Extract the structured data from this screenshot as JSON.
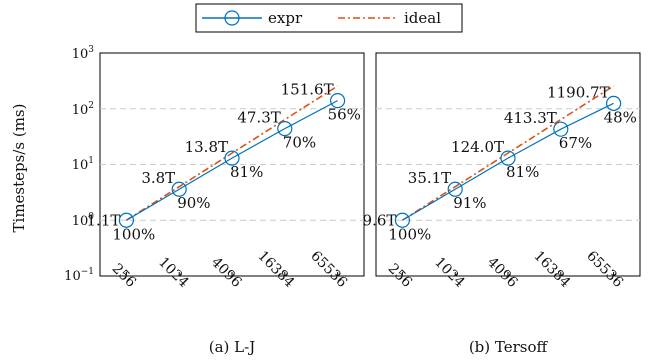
{
  "chart_data": [
    {
      "type": "line",
      "title": "",
      "caption": "(a) L-J",
      "xlabel": "",
      "ylabel": "Timesteps/s (ms)",
      "x": [
        "256",
        "1024",
        "4096",
        "16384",
        "65536"
      ],
      "yscale": "log",
      "ylim": [
        0.1,
        1000
      ],
      "yticks": [
        "10⁻¹",
        "10⁰",
        "10¹",
        "10²",
        "10³"
      ],
      "grid": true,
      "series": [
        {
          "name": "expr",
          "values": [
            1.0,
            3.6,
            13.0,
            44,
            140
          ]
        },
        {
          "name": "ideal",
          "values": [
            1.0,
            4.0,
            16.0,
            64,
            256
          ]
        }
      ],
      "point_labels": [
        "1.1T",
        "3.8T",
        "13.8T",
        "47.3T",
        "151.6T"
      ],
      "efficiency_labels": [
        "100%",
        "90%",
        "81%",
        "70%",
        "56%"
      ]
    },
    {
      "type": "line",
      "title": "",
      "caption": "(b) Tersoff",
      "xlabel": "",
      "ylabel": "",
      "x": [
        "256",
        "1024",
        "4096",
        "16384",
        "65536"
      ],
      "yscale": "log",
      "ylim": [
        0.1,
        1000
      ],
      "grid": true,
      "series": [
        {
          "name": "expr",
          "values": [
            1.0,
            3.6,
            13.0,
            43,
            125
          ]
        },
        {
          "name": "ideal",
          "values": [
            1.0,
            4.0,
            16.0,
            64,
            256
          ]
        }
      ],
      "point_labels": [
        "9.6T",
        "35.1T",
        "124.0T",
        "413.3T",
        "1190.7T"
      ],
      "efficiency_labels": [
        "100%",
        "91%",
        "81%",
        "67%",
        "48%"
      ]
    }
  ],
  "legend": {
    "placement": "top-center",
    "entries": [
      "expr",
      "ideal"
    ]
  },
  "colors": {
    "expr": "#0072BD",
    "ideal": "#D95319",
    "grid": "#cccccc"
  }
}
